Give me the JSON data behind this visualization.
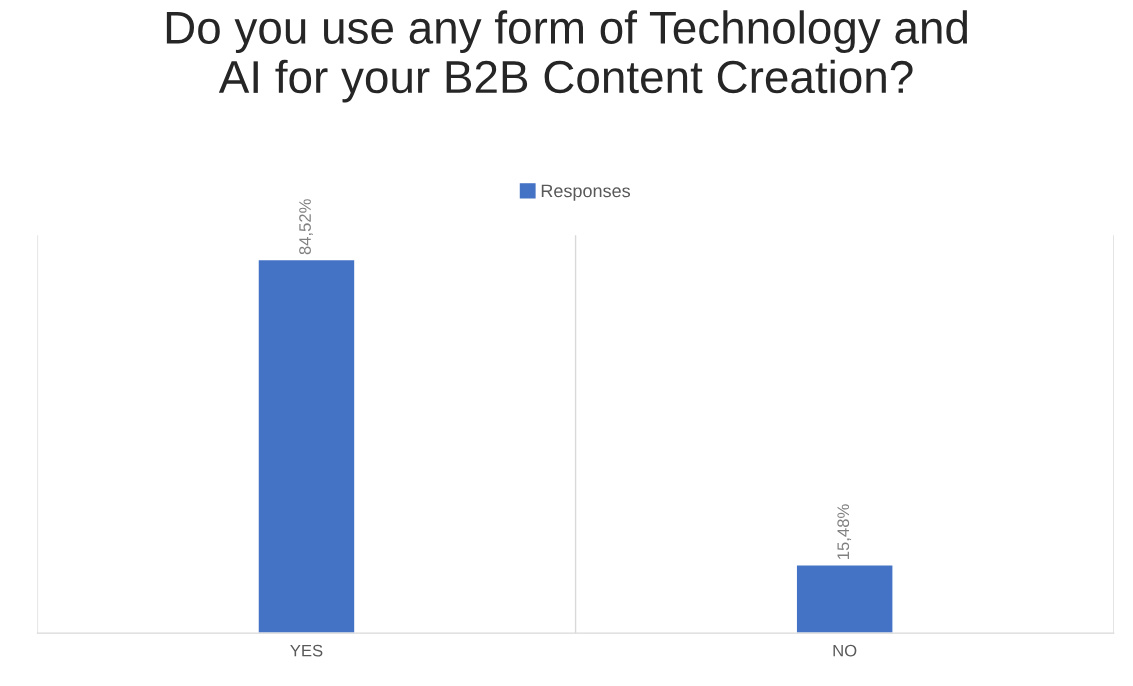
{
  "chart_data": {
    "type": "bar",
    "title": "Do you use any form of Technology and\nAI for your B2B Content Creation?",
    "categories": [
      "YES",
      "NO"
    ],
    "series": [
      {
        "name": "Responses",
        "color": "#4472c4",
        "values": [
          84.52,
          15.48
        ],
        "value_labels": [
          "84,52%",
          "15,48%"
        ]
      }
    ],
    "legend": "top",
    "grid": "x"
  }
}
